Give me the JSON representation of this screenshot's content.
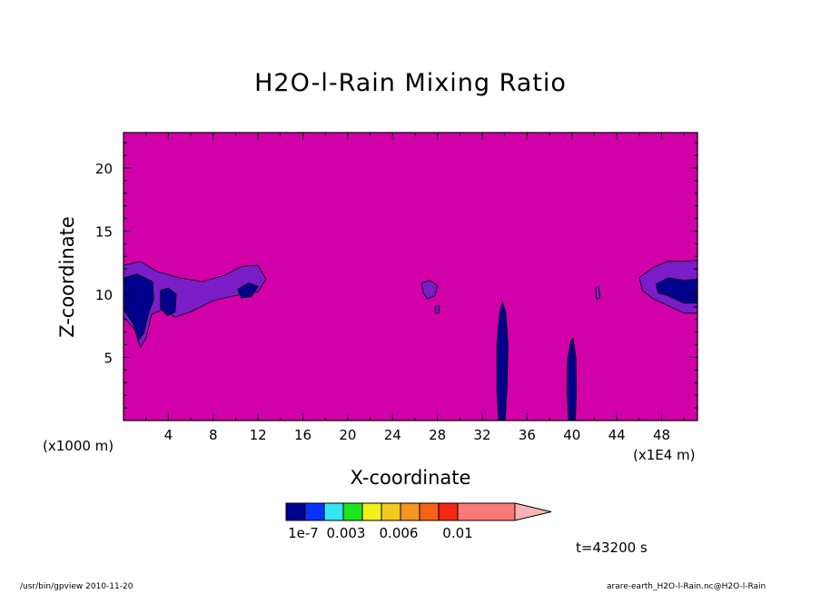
{
  "chart_data": {
    "type": "heatmap",
    "title": "H2O-l-Rain Mixing Ratio",
    "xlabel": "X-coordinate",
    "ylabel": "Z-coordinate",
    "x_unit": "(x1E4 m)",
    "y_unit": "(x1000 m)",
    "x_ticks": [
      "4",
      "8",
      "12",
      "16",
      "20",
      "24",
      "28",
      "32",
      "36",
      "40",
      "44",
      "48"
    ],
    "y_ticks": [
      "5",
      "10",
      "15",
      "20"
    ],
    "xlim": [
      0,
      51.2
    ],
    "ylim": [
      0,
      22.8
    ],
    "background_color": "#d200a8",
    "colorbar": {
      "colors": [
        "#00008c",
        "#0a32ff",
        "#32e6f5",
        "#1ee61e",
        "#f0f01e",
        "#f5c81e",
        "#f5961e",
        "#f56414",
        "#f52814",
        "#fa7878",
        "#fab4b4"
      ],
      "tick_labels": [
        "1e-7",
        "0.003",
        "0.006",
        "0.01"
      ]
    },
    "regions": [
      {
        "name": "left-edge band",
        "x": [
          0,
          12.5
        ],
        "z": [
          6,
          12.5
        ],
        "max_level": "1e-7"
      },
      {
        "name": "right-edge band",
        "x": [
          46,
          51.2
        ],
        "z": [
          8.5,
          12.5
        ],
        "max_level": "1e-7"
      },
      {
        "name": "column near x=34",
        "x": [
          33,
          34.5
        ],
        "z": [
          0,
          9.5
        ],
        "max_level": "1e-7"
      },
      {
        "name": "column near x=40",
        "x": [
          39.5,
          40.5
        ],
        "z": [
          0,
          6.5
        ],
        "max_level": "1e-7"
      },
      {
        "name": "patch near x=27",
        "x": [
          26.5,
          28.5
        ],
        "z": [
          8.5,
          11
        ],
        "max_level": "below 1e-7"
      },
      {
        "name": "patch near x=42",
        "x": [
          42,
          42.5
        ],
        "z": [
          9.5,
          10.5
        ],
        "max_level": "below 1e-7"
      }
    ]
  },
  "annotations": {
    "time": "t=43200 s",
    "footer_left": "/usr/bin/gpview   2010-11-20",
    "footer_right": "arare-earth_H2O-l-Rain.nc@H2O-l-Rain"
  }
}
